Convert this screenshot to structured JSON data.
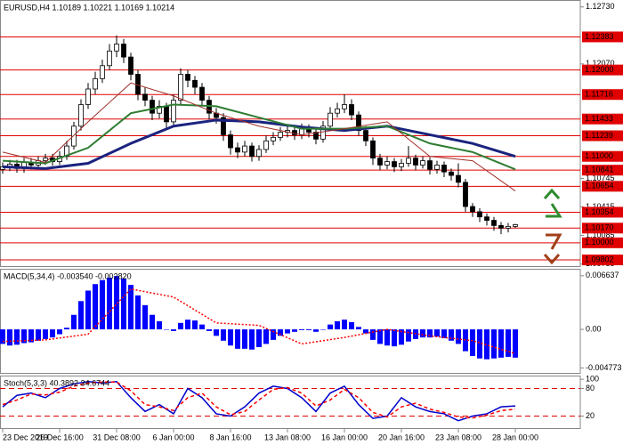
{
  "chart_data": [
    {
      "type": "candlestick",
      "title": "EURUSD,H4  1.10189 1.10221 1.10169 1.10214",
      "categories": [
        "23 Dec 2019",
        null,
        null,
        null,
        null,
        null,
        null,
        null,
        "26 Dec 16:00",
        null,
        null,
        null,
        null,
        null,
        null,
        null,
        "31 Dec 08:00",
        null,
        null,
        null,
        null,
        null,
        null,
        null,
        "6 Jan 00:00",
        null,
        null,
        null,
        null,
        null,
        null,
        null,
        "8 Jan 16:00",
        null,
        null,
        null,
        null,
        null,
        null,
        null,
        "13 Jan 08:00",
        null,
        null,
        null,
        null,
        null,
        null,
        null,
        "16 Jan 00:00",
        null,
        null,
        null,
        null,
        null,
        null,
        null,
        "20 Jan 16:00",
        null,
        null,
        null,
        null,
        null,
        null,
        null,
        "23 Jan 08:00",
        null,
        null,
        null,
        null,
        null,
        null,
        null,
        "28 Jan 00:00"
      ],
      "ohlc": [
        [
          1.1085,
          1.1093,
          1.108,
          1.1088
        ],
        [
          1.1088,
          1.1096,
          1.1083,
          1.1091
        ],
        [
          1.1091,
          1.1096,
          1.1081,
          1.1086
        ],
        [
          1.1086,
          1.1098,
          1.1081,
          1.1093
        ],
        [
          1.1093,
          1.1098,
          1.1085,
          1.109
        ],
        [
          1.109,
          1.11,
          1.1085,
          1.1095
        ],
        [
          1.1095,
          1.1103,
          1.109,
          1.1098
        ],
        [
          1.1098,
          1.1103,
          1.1089,
          1.1094
        ],
        [
          1.1094,
          1.1106,
          1.109,
          1.11
        ],
        [
          1.11,
          1.1118,
          1.1096,
          1.1112
        ],
        [
          1.1112,
          1.114,
          1.1108,
          1.1135
        ],
        [
          1.1135,
          1.1166,
          1.113,
          1.116
        ],
        [
          1.116,
          1.1185,
          1.1155,
          1.1178
        ],
        [
          1.1178,
          1.1198,
          1.1172,
          1.119
        ],
        [
          1.119,
          1.1212,
          1.1185,
          1.1205
        ],
        [
          1.1205,
          1.123,
          1.12,
          1.1222
        ],
        [
          1.1222,
          1.124,
          1.1215,
          1.123
        ],
        [
          1.123,
          1.1236,
          1.1208,
          1.1215
        ],
        [
          1.1215,
          1.122,
          1.1188,
          1.1195
        ],
        [
          1.1195,
          1.12,
          1.1165,
          1.1172
        ],
        [
          1.1172,
          1.118,
          1.1158,
          1.1165
        ],
        [
          1.1165,
          1.117,
          1.1142,
          1.115
        ],
        [
          1.115,
          1.1165,
          1.1144,
          1.1158
        ],
        [
          1.1158,
          1.1162,
          1.1132,
          1.114
        ],
        [
          1.114,
          1.1172,
          1.1136,
          1.1165
        ],
        [
          1.1165,
          1.1202,
          1.116,
          1.1195
        ],
        [
          1.1195,
          1.12,
          1.118,
          1.1188
        ],
        [
          1.1188,
          1.1193,
          1.1172,
          1.118
        ],
        [
          1.118,
          1.1185,
          1.1158,
          1.1165
        ],
        [
          1.1165,
          1.117,
          1.1143,
          1.115
        ],
        [
          1.115,
          1.1156,
          1.1138,
          1.1145
        ],
        [
          1.1145,
          1.115,
          1.1118,
          1.1125
        ],
        [
          1.1125,
          1.113,
          1.1102,
          1.111
        ],
        [
          1.111,
          1.1116,
          1.1098,
          1.1105
        ],
        [
          1.1105,
          1.1118,
          1.11,
          1.1112
        ],
        [
          1.1112,
          1.1116,
          1.1094,
          1.11
        ],
        [
          1.11,
          1.1113,
          1.1095,
          1.1108
        ],
        [
          1.1108,
          1.1124,
          1.1104,
          1.1118
        ],
        [
          1.1118,
          1.1128,
          1.1113,
          1.1122
        ],
        [
          1.1122,
          1.1134,
          1.1118,
          1.1128
        ],
        [
          1.1128,
          1.1137,
          1.1122,
          1.113
        ],
        [
          1.113,
          1.1135,
          1.1119,
          1.1125
        ],
        [
          1.1125,
          1.1138,
          1.112,
          1.1132
        ],
        [
          1.1132,
          1.1137,
          1.1122,
          1.1128
        ],
        [
          1.1128,
          1.1133,
          1.1114,
          1.112
        ],
        [
          1.112,
          1.1141,
          1.1116,
          1.1135
        ],
        [
          1.1135,
          1.1157,
          1.113,
          1.115
        ],
        [
          1.115,
          1.1162,
          1.1145,
          1.1155
        ],
        [
          1.1155,
          1.1172,
          1.115,
          1.116
        ],
        [
          1.116,
          1.1166,
          1.1142,
          1.1148
        ],
        [
          1.1148,
          1.1152,
          1.1124,
          1.113
        ],
        [
          1.113,
          1.1135,
          1.1112,
          1.1118
        ],
        [
          1.1118,
          1.1122,
          1.109,
          1.1098
        ],
        [
          1.1098,
          1.1103,
          1.1084,
          1.109
        ],
        [
          1.109,
          1.11,
          1.1085,
          1.1094
        ],
        [
          1.1094,
          1.1098,
          1.1082,
          1.1088
        ],
        [
          1.1088,
          1.1097,
          1.1083,
          1.1092
        ],
        [
          1.1092,
          1.1112,
          1.1088,
          1.1098
        ],
        [
          1.1098,
          1.1102,
          1.1084,
          1.109
        ],
        [
          1.109,
          1.11,
          1.1086,
          1.1095
        ],
        [
          1.1095,
          1.1099,
          1.1079,
          1.1085
        ],
        [
          1.1085,
          1.1095,
          1.108,
          1.109
        ],
        [
          1.109,
          1.1094,
          1.1076,
          1.1082
        ],
        [
          1.1082,
          1.1086,
          1.1072,
          1.1078
        ],
        [
          1.1078,
          1.1092,
          1.1064,
          1.107
        ],
        [
          1.107,
          1.1074,
          1.1036,
          1.1042
        ],
        [
          1.1042,
          1.1046,
          1.103,
          1.1036
        ],
        [
          1.1036,
          1.104,
          1.1024,
          1.103
        ],
        [
          1.103,
          1.1034,
          1.102,
          1.1026
        ],
        [
          1.1026,
          1.103,
          1.1014,
          1.102
        ],
        [
          1.102,
          1.1024,
          1.101,
          1.1017
        ],
        [
          1.1017,
          1.1023,
          1.1012,
          1.1019
        ],
        [
          1.1019,
          1.1022,
          1.1017,
          1.1021
        ]
      ],
      "series": [
        {
          "color": "#1a237e",
          "width": 3,
          "x": [
            0,
            6,
            12,
            18,
            24,
            30,
            36,
            42,
            48,
            54,
            60,
            66,
            72
          ],
          "values": [
            1.1088,
            1.1086,
            1.1092,
            1.1115,
            1.1135,
            1.1142,
            1.114,
            1.1134,
            1.113,
            1.1135,
            1.1125,
            1.1115,
            1.11
          ]
        },
        {
          "color": "#2e7d32",
          "width": 2,
          "x": [
            0,
            6,
            12,
            18,
            24,
            30,
            36,
            42,
            48,
            54,
            60,
            66,
            72
          ],
          "values": [
            1.1095,
            1.1092,
            1.111,
            1.115,
            1.116,
            1.1158,
            1.1145,
            1.1132,
            1.1132,
            1.1135,
            1.1115,
            1.1105,
            1.1085
          ]
        },
        {
          "color": "#a0302a",
          "width": 1,
          "x": [
            0,
            6,
            12,
            18,
            24,
            30,
            36,
            42,
            48,
            54,
            60,
            66,
            72
          ],
          "values": [
            1.1105,
            1.1093,
            1.114,
            1.1185,
            1.117,
            1.115,
            1.1135,
            1.1125,
            1.1132,
            1.114,
            1.11,
            1.1095,
            1.106
          ]
        }
      ],
      "ylim": [
        1.0972,
        1.1281
      ],
      "yticks": [
        {
          "value": 1.1273,
          "label": "1.12730"
        },
        {
          "value": 1.1207,
          "label": "1.12070"
        },
        {
          "value": 1.10745,
          "label": "1.10745"
        },
        {
          "value": 1.10415,
          "label": "1.10415"
        },
        {
          "value": 1.10085,
          "label": "1.10085"
        },
        {
          "value": 1.09755,
          "label": "1.09755"
        }
      ],
      "levels": [
        {
          "value": 1.12383,
          "label": "1.12383"
        },
        {
          "value": 1.12,
          "label": "1.12000"
        },
        {
          "value": 1.11716,
          "label": "1.11716"
        },
        {
          "value": 1.11433,
          "label": "1.11433"
        },
        {
          "value": 1.11239,
          "label": "1.11239"
        },
        {
          "value": 1.11,
          "label": "1.11000"
        },
        {
          "value": 1.10841,
          "label": "1.10841"
        },
        {
          "value": 1.10654,
          "label": "1.10654"
        },
        {
          "value": 1.10354,
          "label": "1.10354"
        },
        {
          "value": 1.1017,
          "label": "1.10170"
        },
        {
          "value": 1.1,
          "label": "1.10000"
        },
        {
          "value": 1.09802,
          "label": "1.09802"
        }
      ],
      "level_color": "#e00000"
    },
    {
      "type": "macd",
      "title": "MACD(5,34,4) -0.003540 -0.002820",
      "series": [
        {
          "type": "bar",
          "color": "#0000ff",
          "values": [
            -0.0018,
            -0.002,
            -0.0019,
            -0.0017,
            -0.0016,
            -0.0014,
            -0.0012,
            -0.001,
            -0.0006,
            0.0002,
            0.0018,
            0.0035,
            0.0048,
            0.0056,
            0.0061,
            0.0064,
            0.0066,
            0.0063,
            0.0055,
            0.0042,
            0.003,
            0.0018,
            0.001,
            0.0,
            -0.0002,
            0.0008,
            0.0012,
            0.0011,
            0.0006,
            -0.0002,
            -0.0008,
            -0.0014,
            -0.002,
            -0.0024,
            -0.0024,
            -0.0025,
            -0.0022,
            -0.0018,
            -0.0013,
            -0.0008,
            -0.0005,
            -0.0003,
            -0.0001,
            -0.0001,
            -0.0003,
            0.0,
            0.0006,
            0.001,
            0.0012,
            0.0009,
            0.0003,
            -0.0005,
            -0.0013,
            -0.0018,
            -0.002,
            -0.0021,
            -0.0019,
            -0.0015,
            -0.0012,
            -0.001,
            -0.001,
            -0.0009,
            -0.0011,
            -0.0014,
            -0.0018,
            -0.0027,
            -0.0033,
            -0.0036,
            -0.0037,
            -0.0036,
            -0.0035,
            -0.0034,
            -0.0035
          ]
        },
        {
          "type": "line",
          "style": "dotted",
          "color": "#ff0000",
          "x": [
            0,
            6,
            12,
            18,
            24,
            30,
            36,
            42,
            48,
            54,
            60,
            66,
            72
          ],
          "values": [
            -0.0015,
            -0.0013,
            -0.0006,
            0.005,
            0.004,
            0.0008,
            0.0005,
            -0.0018,
            -0.001,
            0.0,
            -0.0008,
            -0.0014,
            -0.003
          ]
        }
      ],
      "ylim": [
        -0.0055,
        0.0075
      ],
      "yticks": [
        0.006637,
        {
          "value": 0,
          "label": "0.00"
        },
        -0.004773
      ]
    },
    {
      "type": "stochastic",
      "title": "Stoch(5,3,3) 40.3892 34.6744",
      "series": [
        {
          "type": "line",
          "style": "solid",
          "color": "#0000cc",
          "x": [
            0,
            2,
            4,
            6,
            8,
            10,
            12,
            14,
            16,
            18,
            20,
            22,
            24,
            26,
            28,
            30,
            32,
            34,
            36,
            38,
            40,
            42,
            44,
            46,
            48,
            50,
            52,
            54,
            56,
            58,
            60,
            62,
            64,
            66,
            68,
            70,
            72
          ],
          "values": [
            40,
            65,
            70,
            60,
            80,
            90,
            95,
            92,
            95,
            60,
            30,
            45,
            25,
            80,
            60,
            25,
            20,
            40,
            70,
            85,
            80,
            60,
            30,
            70,
            85,
            45,
            15,
            20,
            60,
            40,
            30,
            25,
            10,
            20,
            25,
            40,
            42
          ]
        },
        {
          "type": "line",
          "style": "dashed",
          "color": "#ff0000",
          "x": [
            0,
            2,
            4,
            6,
            8,
            10,
            12,
            14,
            16,
            18,
            20,
            22,
            24,
            26,
            28,
            30,
            32,
            34,
            36,
            38,
            40,
            42,
            44,
            46,
            48,
            50,
            52,
            54,
            56,
            58,
            60,
            62,
            64,
            66,
            68,
            70,
            72
          ],
          "values": [
            45,
            55,
            68,
            66,
            72,
            85,
            92,
            94,
            94,
            75,
            45,
            40,
            32,
            60,
            70,
            40,
            23,
            30,
            55,
            78,
            82,
            70,
            42,
            55,
            78,
            60,
            28,
            18,
            40,
            48,
            35,
            28,
            18,
            16,
            22,
            32,
            35
          ]
        }
      ],
      "ylim": [
        -8,
        108
      ],
      "yticks": [
        100,
        80,
        20
      ],
      "levels": [
        80,
        20
      ],
      "level_color": "#e00000"
    }
  ]
}
